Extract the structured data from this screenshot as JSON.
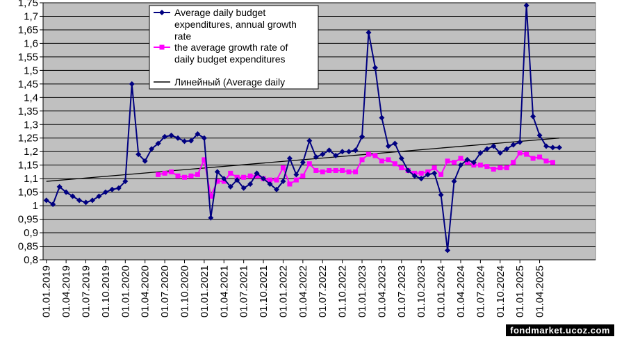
{
  "watermark": "fondmarket.ucoz.com",
  "colors": {
    "plot_background": "#c0c0c0",
    "grid": "#000000",
    "series_average_daily": "#000080",
    "series_average_growth": "#ff00ff",
    "trend": "#000000"
  },
  "chart_data": {
    "type": "line",
    "title": "",
    "xlabel": "",
    "ylabel": "",
    "ylim": [
      0.8,
      1.75
    ],
    "y_ticks": [
      "0,8",
      "0,85",
      "0,9",
      "0,95",
      "1",
      "1,05",
      "1,1",
      "1,15",
      "1,2",
      "1,25",
      "1,3",
      "1,35",
      "1,4",
      "1,45",
      "1,5",
      "1,55",
      "1,6",
      "1,65",
      "1,7",
      "1,75"
    ],
    "x_tick_labels": [
      "01.01.2019",
      "01.04.2019",
      "01.07.2019",
      "01.10.2019",
      "01.01.2020",
      "01.04.2020",
      "01.07.2020",
      "01.10.2020",
      "01.01.2021",
      "01.04.2021",
      "01.07.2021",
      "01.10.2021",
      "01.01.2022",
      "01.04.2022",
      "01.07.2022",
      "01.10.2022",
      "01.01.2023",
      "01.04.2023",
      "01.07.2023",
      "01.10.2023",
      "01.01.2024",
      "01.04.2024",
      "01.07.2024",
      "01.10.2024",
      "01.01.2025",
      "01.04.2025"
    ],
    "x_start": "2019-01",
    "x_months": 84,
    "legend": {
      "placement": "top",
      "entries": [
        "Average daily budget expenditures,  annual growth rate",
        "the average growth rate of daily budget expenditures",
        "Линейный (Average daily"
      ]
    },
    "series": [
      {
        "name": "Average daily budget expenditures,  annual growth rate",
        "marker": "diamond",
        "values": [
          1.02,
          1.005,
          1.07,
          1.05,
          1.035,
          1.02,
          1.012,
          1.02,
          1.035,
          1.05,
          1.06,
          1.065,
          1.09,
          1.45,
          1.19,
          1.165,
          1.21,
          1.23,
          1.255,
          1.26,
          1.25,
          1.238,
          1.24,
          1.265,
          1.25,
          0.955,
          1.125,
          1.1,
          1.07,
          1.095,
          1.065,
          1.08,
          1.12,
          1.1,
          1.08,
          1.06,
          1.09,
          1.175,
          1.115,
          1.16,
          1.24,
          1.18,
          1.19,
          1.205,
          1.185,
          1.2,
          1.2,
          1.205,
          1.255,
          1.64,
          1.51,
          1.325,
          1.22,
          1.23,
          1.175,
          1.13,
          1.11,
          1.1,
          1.115,
          1.12,
          1.04,
          0.835,
          1.09,
          1.15,
          1.17,
          1.16,
          1.195,
          1.21,
          1.22,
          1.195,
          1.21,
          1.225,
          1.235,
          1.74,
          1.33,
          1.26,
          1.22,
          1.215,
          1.215
        ]
      },
      {
        "name": "the average growth rate of daily budget expenditures",
        "marker": "square",
        "start_index": 17,
        "values": [
          1.115,
          1.12,
          1.125,
          1.11,
          1.105,
          1.11,
          1.115,
          1.17,
          1.035,
          1.09,
          1.09,
          1.12,
          1.105,
          1.105,
          1.11,
          1.11,
          1.1,
          1.095,
          1.095,
          1.14,
          1.08,
          1.095,
          1.11,
          1.155,
          1.13,
          1.125,
          1.13,
          1.13,
          1.13,
          1.125,
          1.125,
          1.17,
          1.19,
          1.185,
          1.165,
          1.17,
          1.155,
          1.14,
          1.13,
          1.12,
          1.12,
          1.125,
          1.14,
          1.115,
          1.165,
          1.16,
          1.175,
          1.16,
          1.15,
          1.15,
          1.145,
          1.135,
          1.14,
          1.14,
          1.16,
          1.195,
          1.19,
          1.175,
          1.18,
          1.165,
          1.16
        ]
      },
      {
        "name": "Линейный (Average daily",
        "type": "trendline",
        "x": [
          0,
          78
        ],
        "values": [
          1.09,
          1.25
        ]
      }
    ]
  }
}
